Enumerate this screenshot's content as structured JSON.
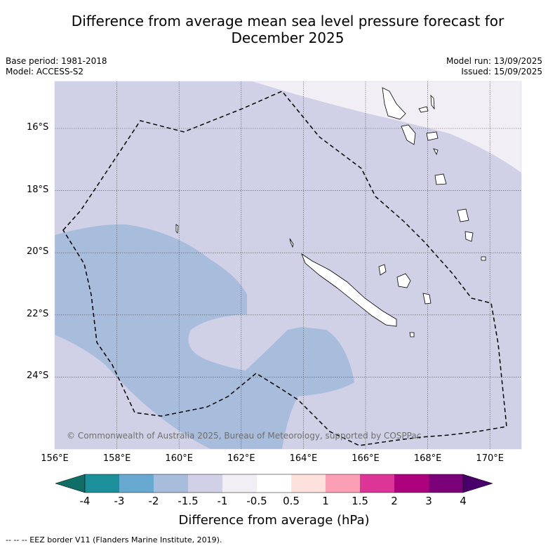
{
  "header": {
    "title_line1": "Difference from average mean sea level pressure forecast for",
    "title_line2": "December 2025",
    "base_period": "Base period: 1981-2018",
    "model": "Model: ACCESS-S2",
    "model_run": "Model run: 13/09/2025",
    "issued": "Issued: 15/09/2025"
  },
  "map": {
    "lat_labels": [
      "16°S",
      "18°S",
      "20°S",
      "22°S",
      "24°S"
    ],
    "lon_labels": [
      "156°E",
      "158°E",
      "160°E",
      "162°E",
      "164°E",
      "166°E",
      "168°E",
      "170°E"
    ],
    "copyright": "© Commonwealth of Australia 2025, Bureau of Meteorology, supported by COSPPac",
    "icons": [
      "eez-border-dashed-line",
      "coastline-outline"
    ]
  },
  "colorbar": {
    "title": "Difference from average (hPa)",
    "ticks": [
      "-4",
      "-3",
      "-2",
      "-1.5",
      "-1",
      "-0.5",
      "0.5",
      "1",
      "1.5",
      "2",
      "3",
      "4"
    ],
    "colors": [
      "#0f6e66",
      "#1b8f9a",
      "#67a9d0",
      "#a8bcdc",
      "#d0d1e6",
      "#f2eef6",
      "#ffffff",
      "#fee0dd",
      "#fa9fb5",
      "#dd3497",
      "#ae017e",
      "#7a0177",
      "#49006a"
    ]
  },
  "footer": {
    "eez_note": "--  --  -- EEZ border V11 (Flanders Marine Institute, 2019)."
  }
}
